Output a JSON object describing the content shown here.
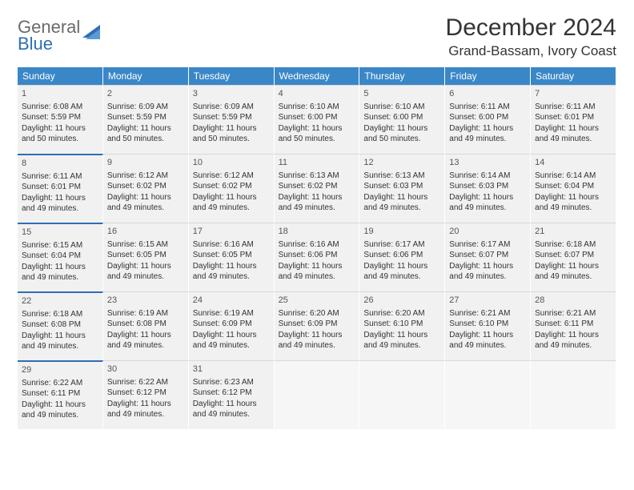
{
  "brand": {
    "word1": "General",
    "word2": "Blue"
  },
  "title": "December 2024",
  "location": "Grand-Bassam, Ivory Coast",
  "colors": {
    "header_bg": "#3a87c8",
    "row_divider": "#2d6fb6",
    "cell_bg": "#f1f1f1",
    "text": "#333333"
  },
  "weekdays": [
    "Sunday",
    "Monday",
    "Tuesday",
    "Wednesday",
    "Thursday",
    "Friday",
    "Saturday"
  ],
  "days": [
    {
      "n": 1,
      "sunrise": "6:08 AM",
      "sunset": "5:59 PM",
      "daylight": "11 hours and 50 minutes."
    },
    {
      "n": 2,
      "sunrise": "6:09 AM",
      "sunset": "5:59 PM",
      "daylight": "11 hours and 50 minutes."
    },
    {
      "n": 3,
      "sunrise": "6:09 AM",
      "sunset": "5:59 PM",
      "daylight": "11 hours and 50 minutes."
    },
    {
      "n": 4,
      "sunrise": "6:10 AM",
      "sunset": "6:00 PM",
      "daylight": "11 hours and 50 minutes."
    },
    {
      "n": 5,
      "sunrise": "6:10 AM",
      "sunset": "6:00 PM",
      "daylight": "11 hours and 50 minutes."
    },
    {
      "n": 6,
      "sunrise": "6:11 AM",
      "sunset": "6:00 PM",
      "daylight": "11 hours and 49 minutes."
    },
    {
      "n": 7,
      "sunrise": "6:11 AM",
      "sunset": "6:01 PM",
      "daylight": "11 hours and 49 minutes."
    },
    {
      "n": 8,
      "sunrise": "6:11 AM",
      "sunset": "6:01 PM",
      "daylight": "11 hours and 49 minutes."
    },
    {
      "n": 9,
      "sunrise": "6:12 AM",
      "sunset": "6:02 PM",
      "daylight": "11 hours and 49 minutes."
    },
    {
      "n": 10,
      "sunrise": "6:12 AM",
      "sunset": "6:02 PM",
      "daylight": "11 hours and 49 minutes."
    },
    {
      "n": 11,
      "sunrise": "6:13 AM",
      "sunset": "6:02 PM",
      "daylight": "11 hours and 49 minutes."
    },
    {
      "n": 12,
      "sunrise": "6:13 AM",
      "sunset": "6:03 PM",
      "daylight": "11 hours and 49 minutes."
    },
    {
      "n": 13,
      "sunrise": "6:14 AM",
      "sunset": "6:03 PM",
      "daylight": "11 hours and 49 minutes."
    },
    {
      "n": 14,
      "sunrise": "6:14 AM",
      "sunset": "6:04 PM",
      "daylight": "11 hours and 49 minutes."
    },
    {
      "n": 15,
      "sunrise": "6:15 AM",
      "sunset": "6:04 PM",
      "daylight": "11 hours and 49 minutes."
    },
    {
      "n": 16,
      "sunrise": "6:15 AM",
      "sunset": "6:05 PM",
      "daylight": "11 hours and 49 minutes."
    },
    {
      "n": 17,
      "sunrise": "6:16 AM",
      "sunset": "6:05 PM",
      "daylight": "11 hours and 49 minutes."
    },
    {
      "n": 18,
      "sunrise": "6:16 AM",
      "sunset": "6:06 PM",
      "daylight": "11 hours and 49 minutes."
    },
    {
      "n": 19,
      "sunrise": "6:17 AM",
      "sunset": "6:06 PM",
      "daylight": "11 hours and 49 minutes."
    },
    {
      "n": 20,
      "sunrise": "6:17 AM",
      "sunset": "6:07 PM",
      "daylight": "11 hours and 49 minutes."
    },
    {
      "n": 21,
      "sunrise": "6:18 AM",
      "sunset": "6:07 PM",
      "daylight": "11 hours and 49 minutes."
    },
    {
      "n": 22,
      "sunrise": "6:18 AM",
      "sunset": "6:08 PM",
      "daylight": "11 hours and 49 minutes."
    },
    {
      "n": 23,
      "sunrise": "6:19 AM",
      "sunset": "6:08 PM",
      "daylight": "11 hours and 49 minutes."
    },
    {
      "n": 24,
      "sunrise": "6:19 AM",
      "sunset": "6:09 PM",
      "daylight": "11 hours and 49 minutes."
    },
    {
      "n": 25,
      "sunrise": "6:20 AM",
      "sunset": "6:09 PM",
      "daylight": "11 hours and 49 minutes."
    },
    {
      "n": 26,
      "sunrise": "6:20 AM",
      "sunset": "6:10 PM",
      "daylight": "11 hours and 49 minutes."
    },
    {
      "n": 27,
      "sunrise": "6:21 AM",
      "sunset": "6:10 PM",
      "daylight": "11 hours and 49 minutes."
    },
    {
      "n": 28,
      "sunrise": "6:21 AM",
      "sunset": "6:11 PM",
      "daylight": "11 hours and 49 minutes."
    },
    {
      "n": 29,
      "sunrise": "6:22 AM",
      "sunset": "6:11 PM",
      "daylight": "11 hours and 49 minutes."
    },
    {
      "n": 30,
      "sunrise": "6:22 AM",
      "sunset": "6:12 PM",
      "daylight": "11 hours and 49 minutes."
    },
    {
      "n": 31,
      "sunrise": "6:23 AM",
      "sunset": "6:12 PM",
      "daylight": "11 hours and 49 minutes."
    }
  ],
  "labels": {
    "sunrise": "Sunrise: ",
    "sunset": "Sunset: ",
    "daylight": "Daylight: "
  }
}
